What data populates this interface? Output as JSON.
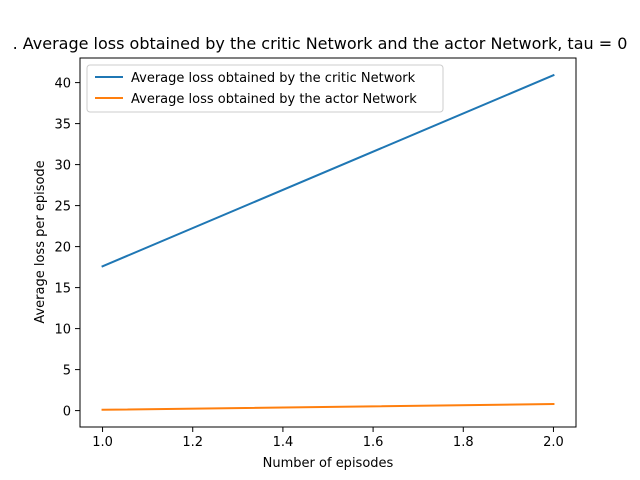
{
  "chart_data": {
    "type": "line",
    "title": ". Average loss obtained by the critic Network and the actor Network, tau = 0",
    "xlabel": "Number of episodes",
    "ylabel": "Average loss per episode",
    "xlim": [
      0.95,
      2.05
    ],
    "ylim": [
      -2,
      43
    ],
    "x_ticks": [
      1.0,
      1.2,
      1.4,
      1.6,
      1.8,
      2.0
    ],
    "x_tick_labels": [
      "1.0",
      "1.2",
      "1.4",
      "1.6",
      "1.8",
      "2.0"
    ],
    "y_ticks": [
      0,
      5,
      10,
      15,
      20,
      25,
      30,
      35,
      40
    ],
    "y_tick_labels": [
      "0",
      "5",
      "10",
      "15",
      "20",
      "25",
      "30",
      "35",
      "40"
    ],
    "grid": false,
    "legend_position": "upper-left",
    "series": [
      {
        "name": "Average loss obtained by the critic Network",
        "color": "#1f77b4",
        "x": [
          1,
          2
        ],
        "y": [
          17.6,
          40.9
        ]
      },
      {
        "name": "Average loss obtained by the actor Network",
        "color": "#ff7f0e",
        "x": [
          1,
          2
        ],
        "y": [
          0.1,
          0.8
        ]
      }
    ]
  }
}
